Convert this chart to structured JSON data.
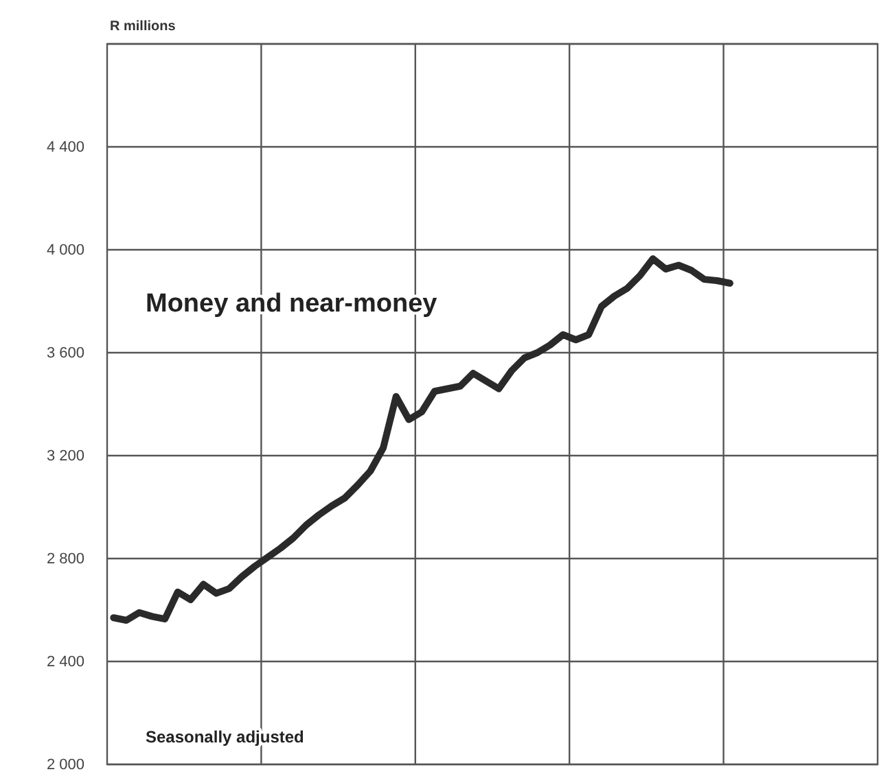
{
  "chart_data": {
    "type": "line",
    "ylabel": "R millions",
    "annotations": [
      "Money and near-money",
      "Seasonally adjusted"
    ],
    "categories": [
      null,
      null,
      null,
      null,
      null,
      null,
      null,
      null,
      null,
      null,
      null,
      null,
      null,
      null,
      null,
      null,
      null,
      null,
      null,
      null,
      null,
      null,
      null,
      null,
      null,
      null,
      null,
      null,
      null,
      null,
      null,
      null,
      null,
      null,
      null,
      null,
      null,
      null,
      null,
      null,
      null,
      null,
      null,
      null,
      null,
      null,
      null,
      null,
      null,
      null,
      null,
      null,
      null,
      null,
      null,
      null,
      null,
      null,
      null,
      null
    ],
    "series": [
      {
        "color": "#2a2a2a",
        "values": [
          2570,
          2560,
          2590,
          2575,
          2565,
          2670,
          2640,
          2700,
          2665,
          2683,
          2730,
          2770,
          2805,
          2840,
          2880,
          2930,
          2970,
          3005,
          3035,
          3085,
          3140,
          3230,
          3430,
          3340,
          3370,
          3450,
          3460,
          3470,
          3520,
          3490,
          3460,
          3530,
          3580,
          3600,
          3630,
          3670,
          3650,
          3670,
          3780,
          3820,
          3850,
          3900,
          3965,
          3925,
          3940,
          3920,
          3885,
          3880,
          3870,
          null,
          null,
          null,
          null,
          null,
          null,
          null,
          null,
          null,
          null,
          null
        ]
      }
    ],
    "ylim": [
      2000,
      4800
    ],
    "yticks": [
      {
        "value": 2000,
        "label": "2 000"
      },
      {
        "value": 2400,
        "label": "2 400"
      },
      {
        "value": 2800,
        "label": "2 800"
      },
      {
        "value": 3200,
        "label": "3 200"
      },
      {
        "value": 3600,
        "label": "3 600"
      },
      {
        "value": 4000,
        "label": "4 000"
      },
      {
        "value": 4400,
        "label": "4 400"
      },
      {
        "value": 4800,
        "label": null
      }
    ],
    "grid": true,
    "tick_labels": "y",
    "marker": "none",
    "line_style": "solid"
  }
}
